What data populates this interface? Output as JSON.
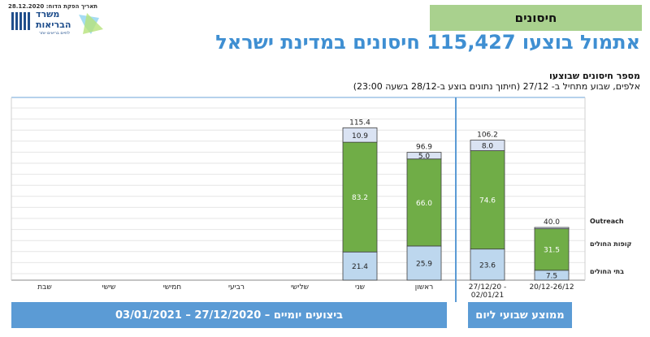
{
  "header": {
    "date_line": "תאריך הפקת הדוח: 28.12.2020",
    "logo_line1": "משרד",
    "logo_line2": "הבריאות",
    "logo_tagline": "לחיים בריאים יותר",
    "section_tag": "חיסונים",
    "headline": "אתמול בוצעו 115,427 חיסונים במדינת ישראל",
    "subtitle": "מספר חיסונים שבוצעו",
    "subtitle2": "אלפים, שבוע מתחיל ב- 27/12 (חיתוך נתונים בוצע ב-28/12 בשעה 23:00)"
  },
  "colors": {
    "accent_blue": "#5b9bd5",
    "headline_blue": "#3f8fd2",
    "bottom_series": "#bdd7ee",
    "middle_series": "#70ad47",
    "top_series": "#dae3f3"
  },
  "chart_data": {
    "type": "bar",
    "stacked": true,
    "categories": [
      "שבת",
      "שישי",
      "חמישי",
      "רביעי",
      "שלישי",
      "שני",
      "ראשון",
      "27/12/20 - 02/01/21",
      "20/12-26/12"
    ],
    "series": [
      {
        "name": "בתי החולים",
        "values": [
          null,
          null,
          null,
          null,
          null,
          21.4,
          25.9,
          23.6,
          7.5
        ]
      },
      {
        "name": "קופות החולים",
        "values": [
          null,
          null,
          null,
          null,
          null,
          83.2,
          66.0,
          74.6,
          31.5
        ]
      },
      {
        "name": "Outreach",
        "values": [
          null,
          null,
          null,
          null,
          null,
          10.9,
          5.0,
          8.0,
          1.0
        ]
      }
    ],
    "segment_labels": [
      [
        null,
        null,
        null,
        null,
        null,
        "21.4",
        "25.9",
        "23.6",
        "7.5"
      ],
      [
        null,
        null,
        null,
        null,
        null,
        "83.2",
        "66.0",
        "74.6",
        "31.5"
      ],
      [
        null,
        null,
        null,
        null,
        null,
        "10.9",
        "5.0",
        "8.0",
        ""
      ]
    ],
    "totals": [
      null,
      null,
      null,
      null,
      null,
      "115.4",
      "96.9",
      "106.2",
      "40.0"
    ],
    "ylim": [
      0,
      125
    ],
    "grid": true,
    "legend": "right"
  },
  "footer": {
    "daily_label": "ביצועים יומיים  –  27/12/2020 – 03/01/2021",
    "weekly_label": "ממוצע שבועי ליום"
  }
}
